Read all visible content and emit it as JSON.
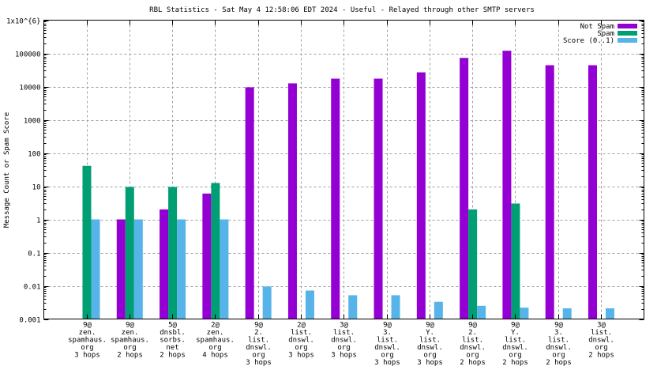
{
  "chart_data": {
    "type": "bar",
    "title": "RBL Statistics - Sat May  4 12:58:06 EDT 2024 - Useful - Relayed through other SMTP servers",
    "xlabel": "",
    "ylabel": "Message Count or Spam Score",
    "yscale": "log",
    "ylim": [
      0.001,
      1000000
    ],
    "yticks": [
      {
        "value": 1000000,
        "label": "1x10^{6}"
      },
      {
        "value": 100000,
        "label": "100000"
      },
      {
        "value": 10000,
        "label": "10000"
      },
      {
        "value": 1000,
        "label": "1000"
      },
      {
        "value": 100,
        "label": "100"
      },
      {
        "value": 10,
        "label": "10"
      },
      {
        "value": 1,
        "label": "1"
      },
      {
        "value": 0.1,
        "label": "0.1"
      },
      {
        "value": 0.01,
        "label": "0.01"
      },
      {
        "value": 0.001,
        "label": "0.001"
      }
    ],
    "grid": true,
    "legend_position": "top-right",
    "categories": [
      [
        "9@",
        "zen.",
        "spamhaus.",
        "org",
        "3 hops"
      ],
      [
        "9@",
        "zen.",
        "spamhaus.",
        "org",
        "2 hops"
      ],
      [
        "5@",
        "dnsbl.",
        "sorbs.",
        "net",
        "2 hops"
      ],
      [
        "2@",
        "zen.",
        "spamhaus.",
        "org",
        "4 hops"
      ],
      [
        "9@",
        "2.",
        "list.",
        "dnswl.",
        "org",
        "3 hops"
      ],
      [
        "2@",
        "list.",
        "dnswl.",
        "org",
        "3 hops"
      ],
      [
        "3@",
        "list.",
        "dnswl.",
        "org",
        "3 hops"
      ],
      [
        "9@",
        "3.",
        "list.",
        "dnswl.",
        "org",
        "3 hops"
      ],
      [
        "9@",
        "Y.",
        "list.",
        "dnswl.",
        "org",
        "3 hops"
      ],
      [
        "9@",
        "2.",
        "list.",
        "dnswl.",
        "org",
        "2 hops"
      ],
      [
        "9@",
        "Y.",
        "list.",
        "dnswl.",
        "org",
        "2 hops"
      ],
      [
        "9@",
        "3.",
        "list.",
        "dnswl.",
        "org",
        "2 hops"
      ],
      [
        "3@",
        "list.",
        "dnswl.",
        "org",
        "2 hops"
      ]
    ],
    "series": [
      {
        "name": "Not Spam",
        "color": "#9400d3",
        "values": [
          0,
          1,
          2,
          6,
          9500,
          12500,
          17300,
          17300,
          26800,
          73000,
          120000,
          44000,
          44000
        ]
      },
      {
        "name": "Spam",
        "color": "#009e73",
        "values": [
          41,
          9.5,
          9.5,
          12.5,
          0,
          0,
          0,
          0,
          0,
          2,
          3,
          0,
          0
        ]
      },
      {
        "name": "Score (0..1)",
        "color": "#56b4e9",
        "values": [
          1,
          1,
          1,
          1,
          0.0095,
          0.0072,
          0.0052,
          0.0052,
          0.0033,
          0.0025,
          0.0022,
          0.0021,
          0.0021
        ]
      }
    ]
  }
}
